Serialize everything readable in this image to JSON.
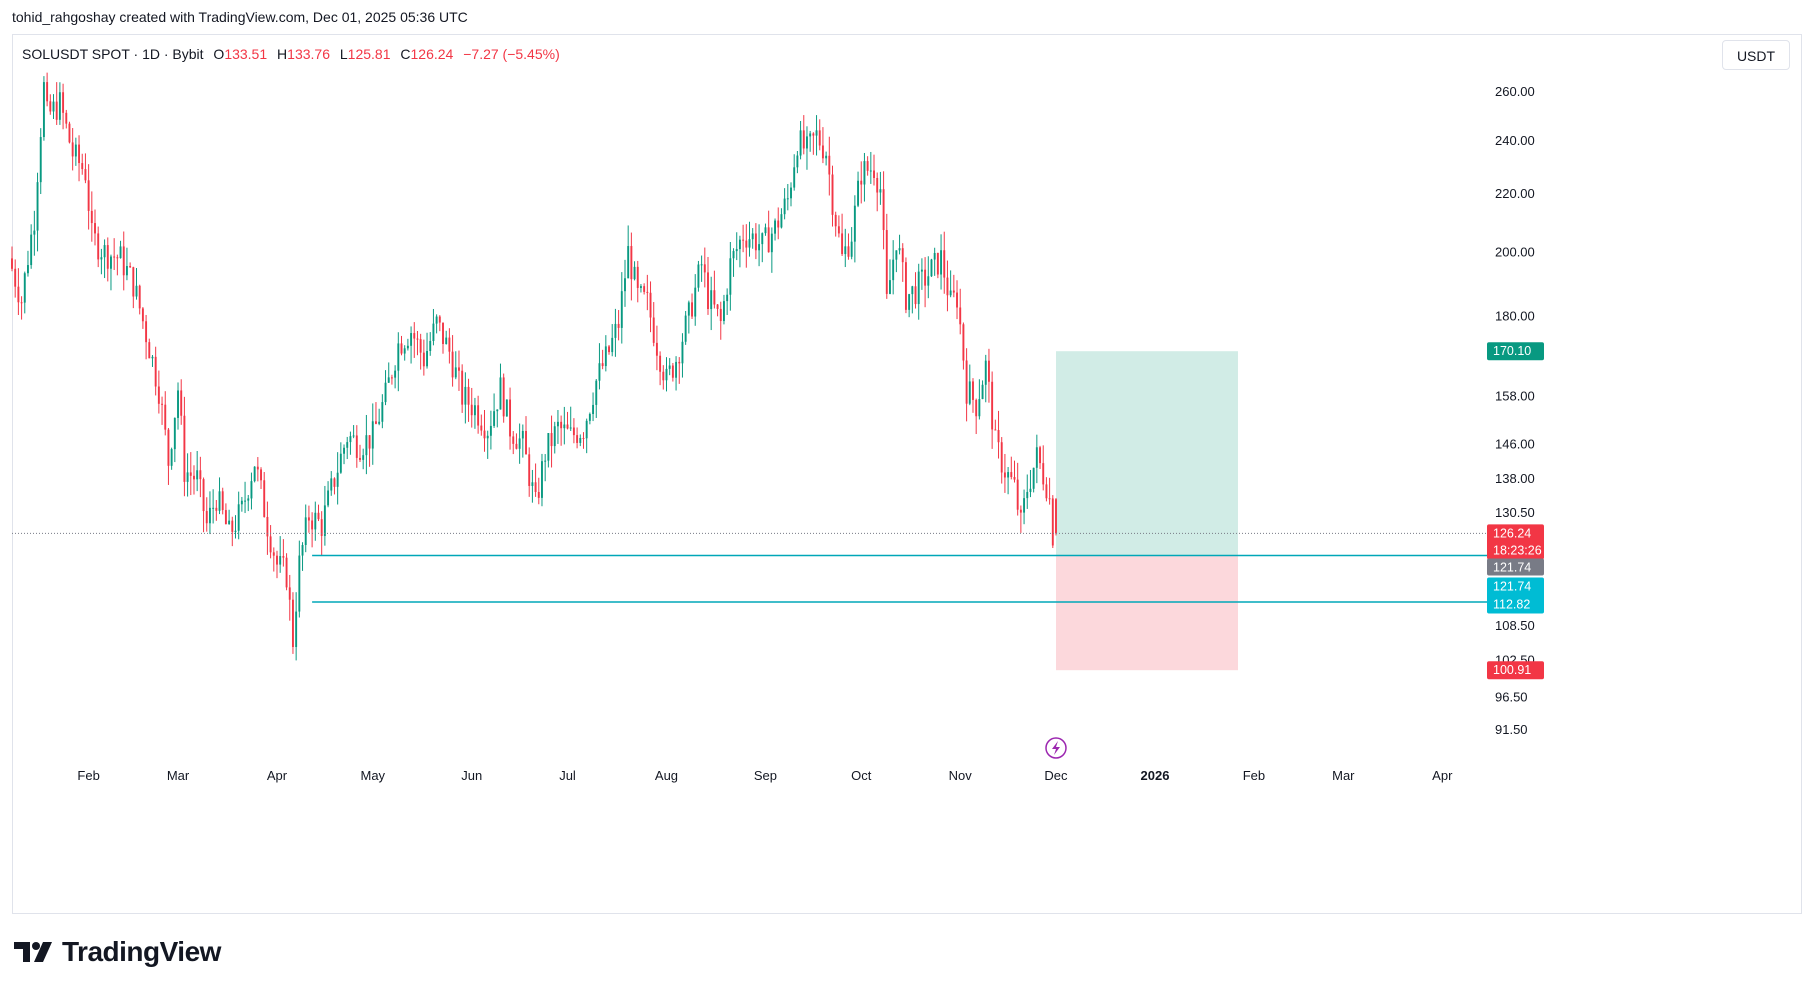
{
  "header": {
    "credit": "tohid_rahgoshay created with TradingView.com, Dec 01, 2025 05:36 UTC"
  },
  "legend": {
    "symbol": "SOLUSDT SPOT · 1D · Bybit",
    "o_label": "O",
    "o_value": "133.51",
    "h_label": "H",
    "h_value": "133.76",
    "l_label": "L",
    "l_value": "125.81",
    "c_label": "C",
    "c_value": "126.24",
    "change": "−7.27 (−5.45%)"
  },
  "currency": "USDT",
  "brand": {
    "name": "TradingView"
  },
  "colors": {
    "up": "#089981",
    "down": "#f23645",
    "level_line": "#00a7b8",
    "target_zone": "#d1ece6",
    "stop_zone": "#fcd8dc",
    "target_badge": "#089981",
    "stop_badge": "#f23645",
    "gray_badge": "#787b86",
    "cyan_badge": "#00bcd4"
  },
  "chart_data": {
    "type": "candlestick",
    "title": "SOLUSDT SPOT · 1D · Bybit",
    "ylim": [
      88,
      275
    ],
    "y_scale": "log",
    "y_ticks": [
      "260.00",
      "240.00",
      "220.00",
      "200.00",
      "180.00",
      "158.00",
      "146.00",
      "138.00",
      "130.50",
      "108.50",
      "102.50",
      "96.50",
      "91.50"
    ],
    "x_labels": [
      {
        "label": "Feb",
        "date": "2025-02-01"
      },
      {
        "label": "Mar",
        "date": "2025-03-01"
      },
      {
        "label": "Apr",
        "date": "2025-04-01"
      },
      {
        "label": "May",
        "date": "2025-05-01"
      },
      {
        "label": "Jun",
        "date": "2025-06-01"
      },
      {
        "label": "Jul",
        "date": "2025-07-01"
      },
      {
        "label": "Aug",
        "date": "2025-08-01"
      },
      {
        "label": "Sep",
        "date": "2025-09-01"
      },
      {
        "label": "Oct",
        "date": "2025-10-01"
      },
      {
        "label": "Nov",
        "date": "2025-11-01"
      },
      {
        "label": "Dec",
        "date": "2025-12-01"
      },
      {
        "label": "2026",
        "date": "2026-01-01",
        "bold": true
      },
      {
        "label": "Feb",
        "date": "2026-02-01"
      },
      {
        "label": "Mar",
        "date": "2026-03-01"
      },
      {
        "label": "Apr",
        "date": "2026-04-01"
      }
    ],
    "x_start": "2025-01-08",
    "x_end": "2026-04-15",
    "price_path": [
      [
        "2025-01-08",
        198
      ],
      [
        "2025-01-12",
        185
      ],
      [
        "2025-01-16",
        212
      ],
      [
        "2025-01-19",
        262
      ],
      [
        "2025-01-20",
        250
      ],
      [
        "2025-01-24",
        255
      ],
      [
        "2025-01-28",
        235
      ],
      [
        "2025-02-01",
        228
      ],
      [
        "2025-02-03",
        205
      ],
      [
        "2025-02-07",
        200
      ],
      [
        "2025-02-12",
        198
      ],
      [
        "2025-02-16",
        190
      ],
      [
        "2025-02-20",
        175
      ],
      [
        "2025-02-24",
        160
      ],
      [
        "2025-02-27",
        142
      ],
      [
        "2025-03-02",
        160
      ],
      [
        "2025-03-04",
        140
      ],
      [
        "2025-03-08",
        138
      ],
      [
        "2025-03-11",
        128
      ],
      [
        "2025-03-14",
        134
      ],
      [
        "2025-03-18",
        126
      ],
      [
        "2025-03-22",
        131
      ],
      [
        "2025-03-26",
        142
      ],
      [
        "2025-03-30",
        128
      ],
      [
        "2025-04-02",
        120
      ],
      [
        "2025-04-05",
        118
      ],
      [
        "2025-04-07",
        106
      ],
      [
        "2025-04-09",
        120
      ],
      [
        "2025-04-12",
        130
      ],
      [
        "2025-04-16",
        128
      ],
      [
        "2025-04-20",
        138
      ],
      [
        "2025-04-24",
        148
      ],
      [
        "2025-04-28",
        146
      ],
      [
        "2025-05-02",
        148
      ],
      [
        "2025-05-06",
        158
      ],
      [
        "2025-05-10",
        172
      ],
      [
        "2025-05-14",
        176
      ],
      [
        "2025-05-18",
        168
      ],
      [
        "2025-05-22",
        178
      ],
      [
        "2025-05-26",
        170
      ],
      [
        "2025-05-30",
        158
      ],
      [
        "2025-06-03",
        155
      ],
      [
        "2025-06-07",
        150
      ],
      [
        "2025-06-11",
        160
      ],
      [
        "2025-06-14",
        150
      ],
      [
        "2025-06-18",
        146
      ],
      [
        "2025-06-22",
        132
      ],
      [
        "2025-06-25",
        144
      ],
      [
        "2025-06-29",
        150
      ],
      [
        "2025-07-03",
        148
      ],
      [
        "2025-07-07",
        150
      ],
      [
        "2025-07-11",
        162
      ],
      [
        "2025-07-15",
        170
      ],
      [
        "2025-07-18",
        178
      ],
      [
        "2025-07-21",
        200
      ],
      [
        "2025-07-24",
        186
      ],
      [
        "2025-07-27",
        184
      ],
      [
        "2025-07-30",
        172
      ],
      [
        "2025-08-02",
        162
      ],
      [
        "2025-08-05",
        168
      ],
      [
        "2025-08-09",
        180
      ],
      [
        "2025-08-13",
        196
      ],
      [
        "2025-08-15",
        186
      ],
      [
        "2025-08-19",
        178
      ],
      [
        "2025-08-22",
        196
      ],
      [
        "2025-08-26",
        206
      ],
      [
        "2025-08-29",
        205
      ],
      [
        "2025-09-01",
        202
      ],
      [
        "2025-09-05",
        208
      ],
      [
        "2025-09-09",
        218
      ],
      [
        "2025-09-12",
        240
      ],
      [
        "2025-09-15",
        236
      ],
      [
        "2025-09-18",
        242
      ],
      [
        "2025-09-21",
        236
      ],
      [
        "2025-09-23",
        218
      ],
      [
        "2025-09-26",
        198
      ],
      [
        "2025-09-29",
        206
      ],
      [
        "2025-10-02",
        228
      ],
      [
        "2025-10-06",
        230
      ],
      [
        "2025-10-08",
        222
      ],
      [
        "2025-10-10",
        184
      ],
      [
        "2025-10-13",
        205
      ],
      [
        "2025-10-16",
        186
      ],
      [
        "2025-10-19",
        188
      ],
      [
        "2025-10-23",
        193
      ],
      [
        "2025-10-27",
        198
      ],
      [
        "2025-10-30",
        184
      ],
      [
        "2025-11-01",
        186
      ],
      [
        "2025-11-04",
        160
      ],
      [
        "2025-11-07",
        156
      ],
      [
        "2025-11-10",
        166
      ],
      [
        "2025-11-13",
        146
      ],
      [
        "2025-11-16",
        140
      ],
      [
        "2025-11-19",
        136
      ],
      [
        "2025-11-21",
        128
      ],
      [
        "2025-11-23",
        136
      ],
      [
        "2025-11-26",
        143
      ],
      [
        "2025-11-29",
        137
      ],
      [
        "2025-11-30",
        133.51
      ],
      [
        "2025-12-01",
        126.24
      ]
    ],
    "last_candle": {
      "date": "2025-12-01",
      "open": 133.51,
      "high": 133.76,
      "low": 125.81,
      "close": 126.24
    },
    "current_price": {
      "value": 126.24,
      "label": "126.24",
      "countdown": "18:23:26"
    },
    "levels": [
      {
        "name": "upper-support",
        "value": 121.74,
        "from": "2025-04-12",
        "labels": [
          "121.74",
          "121.74"
        ]
      },
      {
        "name": "lower-support",
        "value": 112.82,
        "from": "2025-04-12",
        "labels": [
          "112.82"
        ]
      }
    ],
    "position_tool": {
      "entry": 121.74,
      "target": 170.1,
      "stop": 100.91,
      "target_label": "170.10",
      "stop_label": "100.91",
      "from": "2025-12-01",
      "to": "2026-01-27"
    },
    "event_marker": {
      "date": "2025-12-01",
      "icon": "lightning-icon"
    }
  }
}
